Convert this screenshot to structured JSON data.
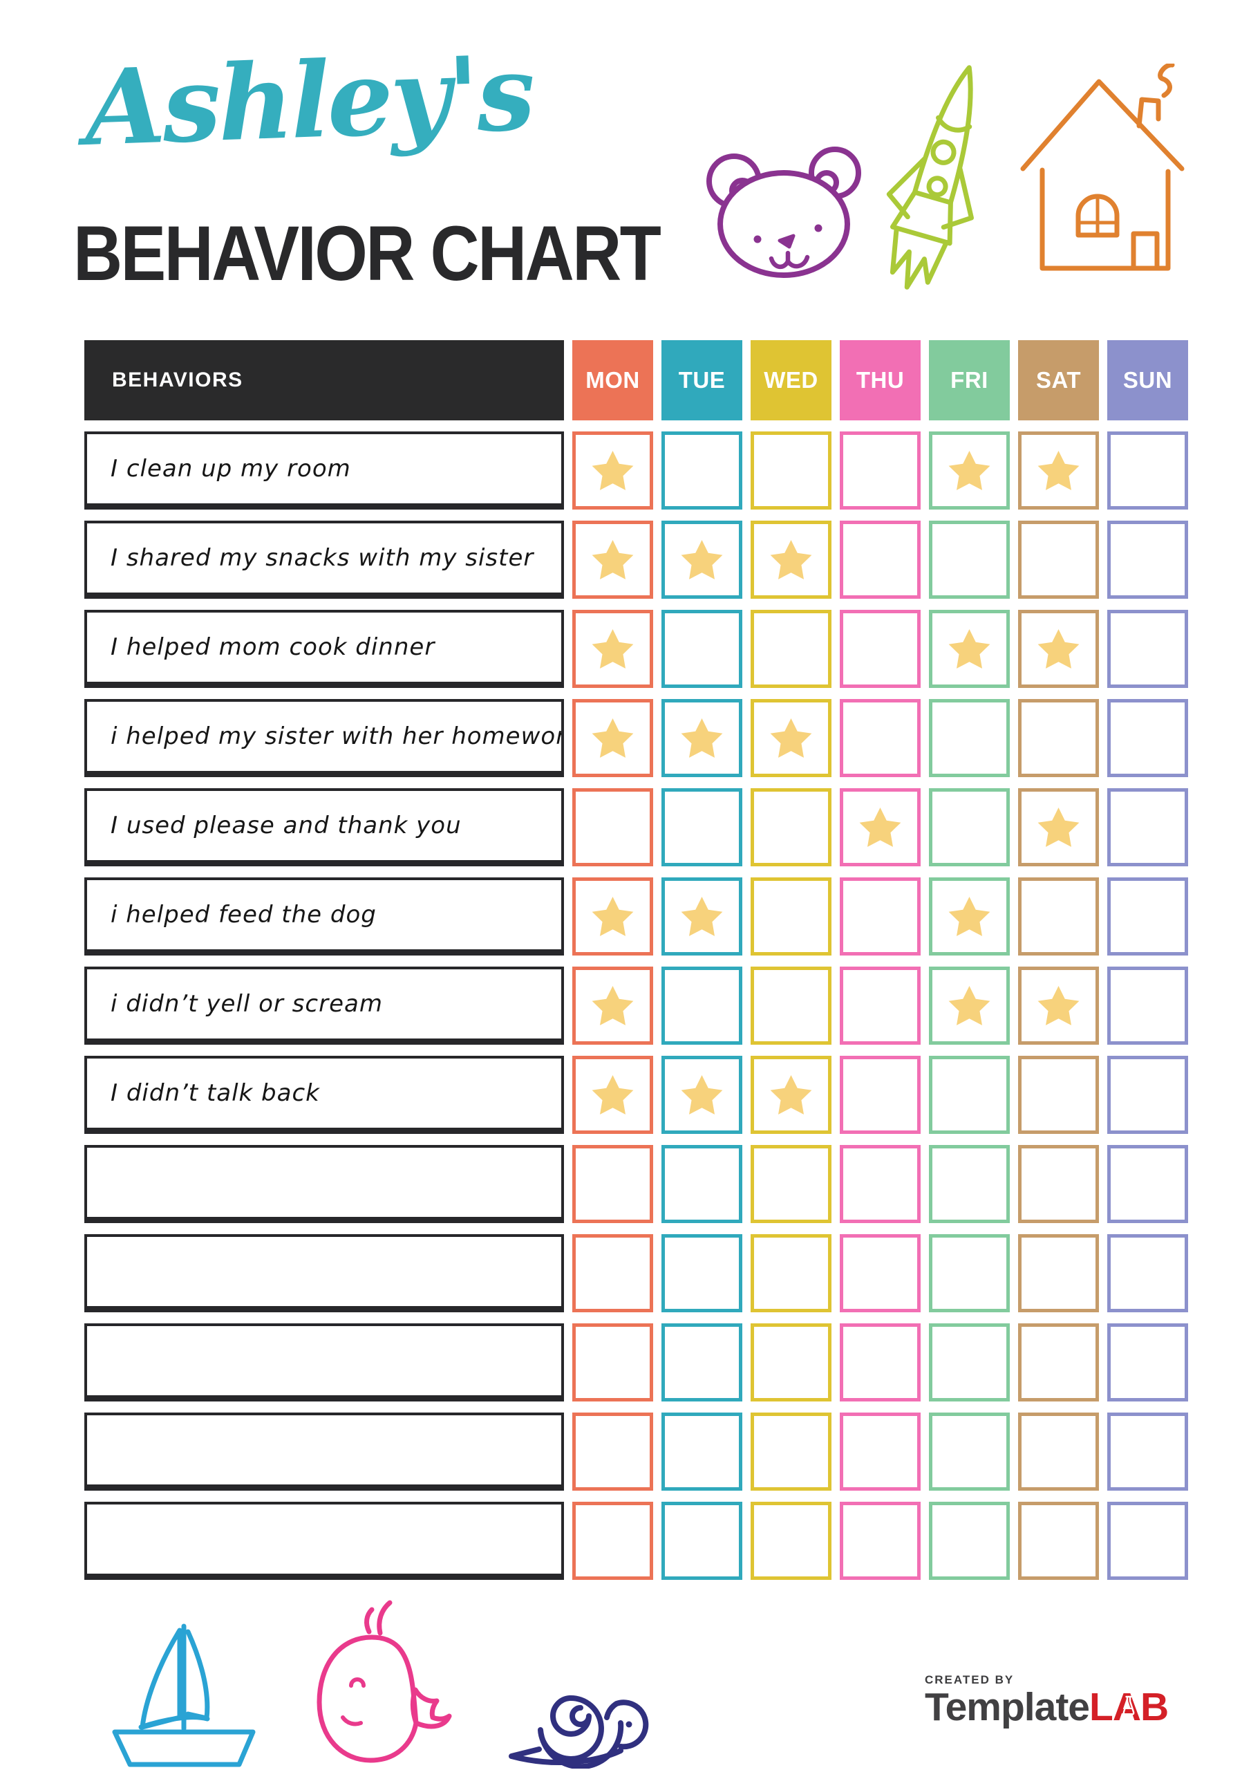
{
  "header": {
    "name_script": "Ashley's",
    "script_color": "#35AEBE",
    "title": "BEHAVIOR CHART",
    "title_color": "#29292B",
    "doodles": [
      {
        "icon": "bear-icon",
        "color": "#8A3390"
      },
      {
        "icon": "rocket-icon",
        "color": "#AAC938"
      },
      {
        "icon": "house-icon",
        "color": "#E0812F"
      }
    ]
  },
  "table": {
    "behaviors_header": "BEHAVIORS",
    "header_bg": "#2A2A2B",
    "star_icon": "star-icon",
    "star_color": "#F7D27C",
    "days": [
      {
        "label": "MON",
        "color": "#EC7356"
      },
      {
        "label": "TUE",
        "color": "#30A9BC"
      },
      {
        "label": "WED",
        "color": "#DFC433"
      },
      {
        "label": "THU",
        "color": "#F26FB4"
      },
      {
        "label": "FRI",
        "color": "#82CB9D"
      },
      {
        "label": "SAT",
        "color": "#C69C6A"
      },
      {
        "label": "SUN",
        "color": "#8C91CC"
      }
    ],
    "rows": [
      {
        "behavior": "I clean up my room",
        "stars": [
          1,
          0,
          0,
          0,
          1,
          1,
          0
        ]
      },
      {
        "behavior": "I shared my snacks with my sister",
        "stars": [
          1,
          1,
          1,
          0,
          0,
          0,
          0
        ]
      },
      {
        "behavior": "I helped mom cook dinner",
        "stars": [
          1,
          0,
          0,
          0,
          1,
          1,
          0
        ]
      },
      {
        "behavior": "i helped my sister with her homework",
        "stars": [
          1,
          1,
          1,
          0,
          0,
          0,
          0
        ]
      },
      {
        "behavior": "I used please and thank you",
        "stars": [
          0,
          0,
          0,
          1,
          0,
          1,
          0
        ]
      },
      {
        "behavior": "i helped feed the dog",
        "stars": [
          1,
          1,
          0,
          0,
          1,
          0,
          0
        ]
      },
      {
        "behavior": "i didn’t yell or scream",
        "stars": [
          1,
          0,
          0,
          0,
          1,
          1,
          0
        ]
      },
      {
        "behavior": "I didn’t talk back",
        "stars": [
          1,
          1,
          1,
          0,
          0,
          0,
          0
        ]
      },
      {
        "behavior": "",
        "stars": [
          0,
          0,
          0,
          0,
          0,
          0,
          0
        ]
      },
      {
        "behavior": "",
        "stars": [
          0,
          0,
          0,
          0,
          0,
          0,
          0
        ]
      },
      {
        "behavior": "",
        "stars": [
          0,
          0,
          0,
          0,
          0,
          0,
          0
        ]
      },
      {
        "behavior": "",
        "stars": [
          0,
          0,
          0,
          0,
          0,
          0,
          0
        ]
      },
      {
        "behavior": "",
        "stars": [
          0,
          0,
          0,
          0,
          0,
          0,
          0
        ]
      }
    ]
  },
  "footer": {
    "doodles": [
      {
        "icon": "sailboat-icon",
        "color": "#2AA3D4"
      },
      {
        "icon": "whale-icon",
        "color": "#E93A8C"
      },
      {
        "icon": "snail-icon",
        "color": "#30307F"
      }
    ],
    "logo": {
      "created_by": "CREATED BY",
      "brand_part1": "Template",
      "brand_part2": "LAB",
      "brand_color1": "#414042",
      "brand_color2": "#D42027",
      "flask_icon": "flask-icon"
    }
  }
}
